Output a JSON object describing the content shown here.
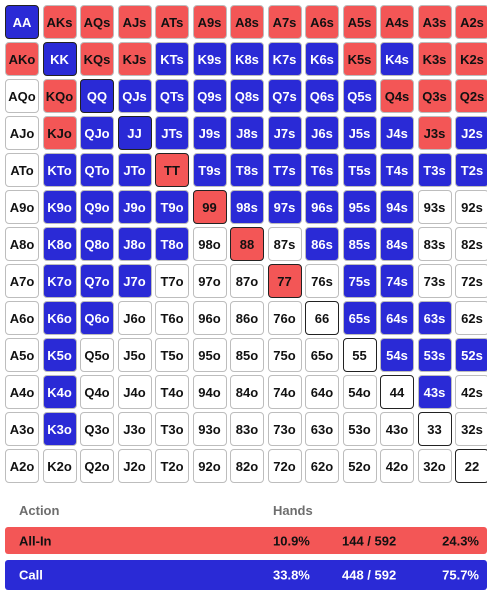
{
  "grid": {
    "rows": [
      [
        [
          "AA",
          "call"
        ],
        [
          "AKs",
          "allin"
        ],
        [
          "AQs",
          "allin"
        ],
        [
          "AJs",
          "allin"
        ],
        [
          "ATs",
          "allin"
        ],
        [
          "A9s",
          "allin"
        ],
        [
          "A8s",
          "allin"
        ],
        [
          "A7s",
          "allin"
        ],
        [
          "A6s",
          "allin"
        ],
        [
          "A5s",
          "allin"
        ],
        [
          "A4s",
          "allin"
        ],
        [
          "A3s",
          "allin"
        ],
        [
          "A2s",
          "allin"
        ]
      ],
      [
        [
          "AKo",
          "allin"
        ],
        [
          "KK",
          "call"
        ],
        [
          "KQs",
          "allin"
        ],
        [
          "KJs",
          "allin"
        ],
        [
          "KTs",
          "call"
        ],
        [
          "K9s",
          "call"
        ],
        [
          "K8s",
          "call"
        ],
        [
          "K7s",
          "call"
        ],
        [
          "K6s",
          "call"
        ],
        [
          "K5s",
          "allin"
        ],
        [
          "K4s",
          "call"
        ],
        [
          "K3s",
          "allin"
        ],
        [
          "K2s",
          "allin"
        ]
      ],
      [
        [
          "AQo",
          "fold"
        ],
        [
          "KQo",
          "allin"
        ],
        [
          "QQ",
          "call"
        ],
        [
          "QJs",
          "call"
        ],
        [
          "QTs",
          "call"
        ],
        [
          "Q9s",
          "call"
        ],
        [
          "Q8s",
          "call"
        ],
        [
          "Q7s",
          "call"
        ],
        [
          "Q6s",
          "call"
        ],
        [
          "Q5s",
          "call"
        ],
        [
          "Q4s",
          "allin"
        ],
        [
          "Q3s",
          "allin"
        ],
        [
          "Q2s",
          "allin"
        ]
      ],
      [
        [
          "AJo",
          "fold"
        ],
        [
          "KJo",
          "allin"
        ],
        [
          "QJo",
          "call"
        ],
        [
          "JJ",
          "call"
        ],
        [
          "JTs",
          "call"
        ],
        [
          "J9s",
          "call"
        ],
        [
          "J8s",
          "call"
        ],
        [
          "J7s",
          "call"
        ],
        [
          "J6s",
          "call"
        ],
        [
          "J5s",
          "call"
        ],
        [
          "J4s",
          "call"
        ],
        [
          "J3s",
          "allin"
        ],
        [
          "J2s",
          "call"
        ]
      ],
      [
        [
          "ATo",
          "fold"
        ],
        [
          "KTo",
          "call"
        ],
        [
          "QTo",
          "call"
        ],
        [
          "JTo",
          "call"
        ],
        [
          "TT",
          "allin"
        ],
        [
          "T9s",
          "call"
        ],
        [
          "T8s",
          "call"
        ],
        [
          "T7s",
          "call"
        ],
        [
          "T6s",
          "call"
        ],
        [
          "T5s",
          "call"
        ],
        [
          "T4s",
          "call"
        ],
        [
          "T3s",
          "call"
        ],
        [
          "T2s",
          "call"
        ]
      ],
      [
        [
          "A9o",
          "fold"
        ],
        [
          "K9o",
          "call"
        ],
        [
          "Q9o",
          "call"
        ],
        [
          "J9o",
          "call"
        ],
        [
          "T9o",
          "call"
        ],
        [
          "99",
          "allin"
        ],
        [
          "98s",
          "call"
        ],
        [
          "97s",
          "call"
        ],
        [
          "96s",
          "call"
        ],
        [
          "95s",
          "call"
        ],
        [
          "94s",
          "call"
        ],
        [
          "93s",
          "fold"
        ],
        [
          "92s",
          "fold"
        ]
      ],
      [
        [
          "A8o",
          "fold"
        ],
        [
          "K8o",
          "call"
        ],
        [
          "Q8o",
          "call"
        ],
        [
          "J8o",
          "call"
        ],
        [
          "T8o",
          "call"
        ],
        [
          "98o",
          "fold"
        ],
        [
          "88",
          "allin"
        ],
        [
          "87s",
          "fold"
        ],
        [
          "86s",
          "call"
        ],
        [
          "85s",
          "call"
        ],
        [
          "84s",
          "call"
        ],
        [
          "83s",
          "fold"
        ],
        [
          "82s",
          "fold"
        ]
      ],
      [
        [
          "A7o",
          "fold"
        ],
        [
          "K7o",
          "call"
        ],
        [
          "Q7o",
          "call"
        ],
        [
          "J7o",
          "call"
        ],
        [
          "T7o",
          "fold"
        ],
        [
          "97o",
          "fold"
        ],
        [
          "87o",
          "fold"
        ],
        [
          "77",
          "allin"
        ],
        [
          "76s",
          "fold"
        ],
        [
          "75s",
          "call"
        ],
        [
          "74s",
          "call"
        ],
        [
          "73s",
          "fold"
        ],
        [
          "72s",
          "fold"
        ]
      ],
      [
        [
          "A6o",
          "fold"
        ],
        [
          "K6o",
          "call"
        ],
        [
          "Q6o",
          "call"
        ],
        [
          "J6o",
          "fold"
        ],
        [
          "T6o",
          "fold"
        ],
        [
          "96o",
          "fold"
        ],
        [
          "86o",
          "fold"
        ],
        [
          "76o",
          "fold"
        ],
        [
          "66",
          "fold"
        ],
        [
          "65s",
          "call"
        ],
        [
          "64s",
          "call"
        ],
        [
          "63s",
          "call"
        ],
        [
          "62s",
          "fold"
        ]
      ],
      [
        [
          "A5o",
          "fold"
        ],
        [
          "K5o",
          "call"
        ],
        [
          "Q5o",
          "fold"
        ],
        [
          "J5o",
          "fold"
        ],
        [
          "T5o",
          "fold"
        ],
        [
          "95o",
          "fold"
        ],
        [
          "85o",
          "fold"
        ],
        [
          "75o",
          "fold"
        ],
        [
          "65o",
          "fold"
        ],
        [
          "55",
          "fold"
        ],
        [
          "54s",
          "call"
        ],
        [
          "53s",
          "call"
        ],
        [
          "52s",
          "call"
        ]
      ],
      [
        [
          "A4o",
          "fold"
        ],
        [
          "K4o",
          "call"
        ],
        [
          "Q4o",
          "fold"
        ],
        [
          "J4o",
          "fold"
        ],
        [
          "T4o",
          "fold"
        ],
        [
          "94o",
          "fold"
        ],
        [
          "84o",
          "fold"
        ],
        [
          "74o",
          "fold"
        ],
        [
          "64o",
          "fold"
        ],
        [
          "54o",
          "fold"
        ],
        [
          "44",
          "fold"
        ],
        [
          "43s",
          "call"
        ],
        [
          "42s",
          "fold"
        ]
      ],
      [
        [
          "A3o",
          "fold"
        ],
        [
          "K3o",
          "call"
        ],
        [
          "Q3o",
          "fold"
        ],
        [
          "J3o",
          "fold"
        ],
        [
          "T3o",
          "fold"
        ],
        [
          "93o",
          "fold"
        ],
        [
          "83o",
          "fold"
        ],
        [
          "73o",
          "fold"
        ],
        [
          "63o",
          "fold"
        ],
        [
          "53o",
          "fold"
        ],
        [
          "43o",
          "fold"
        ],
        [
          "33",
          "fold"
        ],
        [
          "32s",
          "fold"
        ]
      ],
      [
        [
          "A2o",
          "fold"
        ],
        [
          "K2o",
          "fold"
        ],
        [
          "Q2o",
          "fold"
        ],
        [
          "J2o",
          "fold"
        ],
        [
          "T2o",
          "fold"
        ],
        [
          "92o",
          "fold"
        ],
        [
          "82o",
          "fold"
        ],
        [
          "72o",
          "fold"
        ],
        [
          "62o",
          "fold"
        ],
        [
          "52o",
          "fold"
        ],
        [
          "42o",
          "fold"
        ],
        [
          "32o",
          "fold"
        ],
        [
          "22",
          "fold"
        ]
      ]
    ]
  },
  "colors": {
    "allin": "#f35656",
    "call": "#2a2ad6",
    "fold": "#ffffff"
  },
  "summary": {
    "header_action": "Action",
    "header_hands": "Hands",
    "rows": [
      {
        "name": "All-In",
        "percent": "10.9%",
        "combos": "144 / 592",
        "share": "24.3%"
      },
      {
        "name": "Call",
        "percent": "33.8%",
        "combos": "448 / 592",
        "share": "75.7%"
      }
    ]
  }
}
